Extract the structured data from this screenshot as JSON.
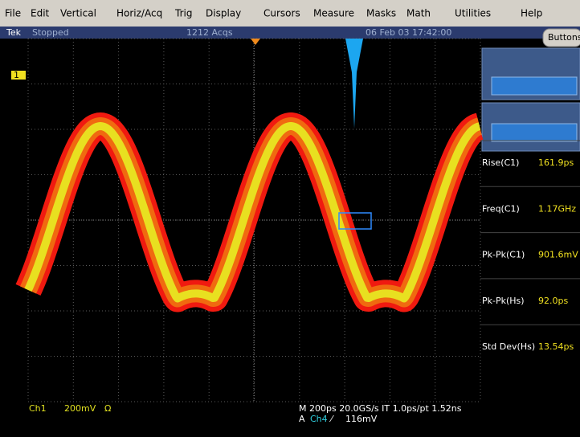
{
  "menu": [
    "File",
    "Edit",
    "Vertical",
    "Horiz/Acq",
    "Trig",
    "Display",
    "Cursors",
    "Measure",
    "Masks",
    "Math",
    "Utilities",
    "Help"
  ],
  "status": {
    "brand": "Tek",
    "state": "Stopped",
    "acquisitions": "1212 Acqs",
    "datetime": "06 Feb 03 17:42:00",
    "button": "Buttons"
  },
  "channel_marker": "1",
  "measurements": [
    {
      "label": "Rise(C1)",
      "value": "161.9ps"
    },
    {
      "label": "Freq(C1)",
      "value": "1.17GHz"
    },
    {
      "label": "Pk-Pk(C1)",
      "value": "901.6mV"
    },
    {
      "label": "Pk-Pk(Hs)",
      "value": "92.0ps"
    },
    {
      "label": "Std Dev(Hs)",
      "value": "13.54ps"
    }
  ],
  "readout": {
    "channel": "Ch1",
    "scale": "200mV",
    "coupling": "Ω",
    "timebase": "M 200ps 20.0GS/s IT 1.0ps/pt 1.52ns",
    "trigger_prefix": "A",
    "trigger_source": "Ch4",
    "trigger_slope": "⁄",
    "trigger_level": "116mV"
  }
}
